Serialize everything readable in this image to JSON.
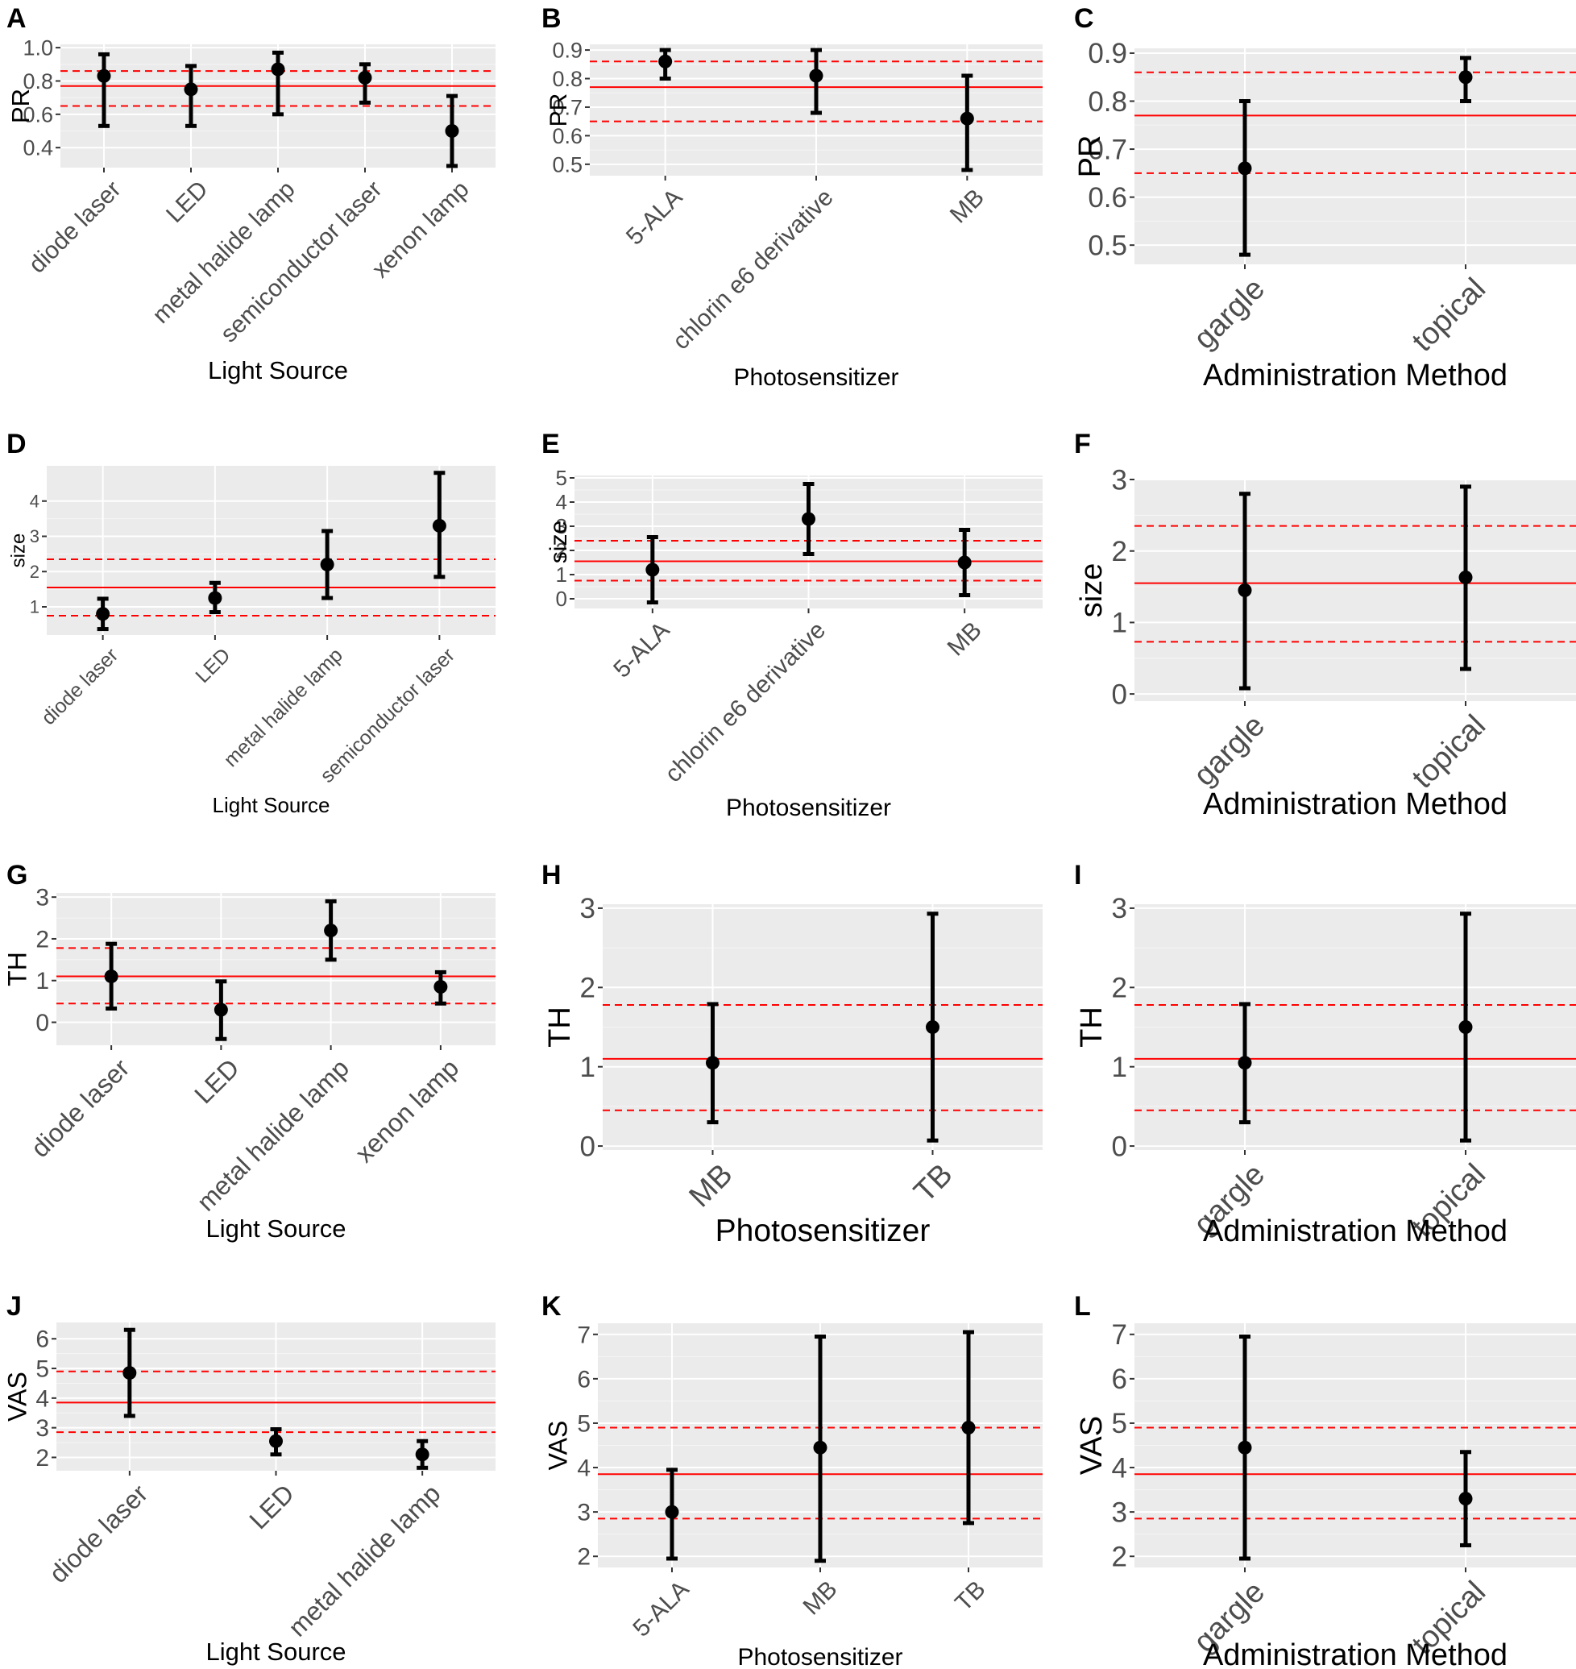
{
  "figure": {
    "title": ""
  },
  "colors": {
    "panel_bg": "#ebebeb",
    "grid_major": "#ffffff",
    "point": "#000000",
    "pooled_line": "#ff0000",
    "ci_line": "#ff0000",
    "tick_text": "#4d4d4d",
    "label_text": "#000000"
  },
  "chart_data": [
    {
      "panel": "A",
      "type": "scatter",
      "xlabel": "Light Source",
      "ylabel": "PR",
      "categories": [
        "diode laser",
        "LED",
        "metal halide lamp",
        "semiconductor laser",
        "xenon lamp"
      ],
      "estimate": [
        0.83,
        0.75,
        0.87,
        0.82,
        0.5
      ],
      "lower": [
        0.53,
        0.53,
        0.6,
        0.67,
        0.29
      ],
      "upper": [
        0.96,
        0.89,
        0.97,
        0.9,
        0.71
      ],
      "pooled": 0.77,
      "pooled_ci": [
        0.65,
        0.86
      ],
      "ylim": [
        0.28,
        1.02
      ],
      "yticks": [
        "0.4",
        "0.6",
        "0.8",
        "1.0"
      ]
    },
    {
      "panel": "B",
      "type": "scatter",
      "xlabel": "Photosensitizer",
      "ylabel": "PR",
      "categories": [
        "5-ALA",
        "chlorin e6 derivative",
        "MB"
      ],
      "estimate": [
        0.86,
        0.81,
        0.66
      ],
      "lower": [
        0.8,
        0.68,
        0.48
      ],
      "upper": [
        0.9,
        0.9,
        0.81
      ],
      "pooled": 0.77,
      "pooled_ci": [
        0.65,
        0.86
      ],
      "ylim": [
        0.46,
        0.92
      ],
      "yticks": [
        "0.5",
        "0.6",
        "0.7",
        "0.8",
        "0.9"
      ]
    },
    {
      "panel": "C",
      "type": "scatter",
      "xlabel": "Administration Method",
      "ylabel": "PR",
      "categories": [
        "gargle",
        "topical"
      ],
      "estimate": [
        0.66,
        0.85
      ],
      "lower": [
        0.48,
        0.8
      ],
      "upper": [
        0.8,
        0.89
      ],
      "pooled": 0.77,
      "pooled_ci": [
        0.65,
        0.86
      ],
      "ylim": [
        0.46,
        0.91
      ],
      "yticks": [
        "0.5",
        "0.6",
        "0.7",
        "0.8",
        "0.9"
      ]
    },
    {
      "panel": "D",
      "type": "scatter",
      "xlabel": "Light Source",
      "ylabel": "size",
      "categories": [
        "diode laser",
        "LED",
        "metal halide lamp",
        "semiconductor laser"
      ],
      "estimate": [
        0.8,
        1.25,
        2.2,
        3.3
      ],
      "lower": [
        0.37,
        0.85,
        1.25,
        1.85
      ],
      "upper": [
        1.23,
        1.68,
        3.15,
        4.8
      ],
      "pooled": 1.55,
      "pooled_ci": [
        0.75,
        2.35
      ],
      "ylim": [
        0.2,
        5.0
      ],
      "yticks": [
        "1",
        "2",
        "3",
        "4"
      ]
    },
    {
      "panel": "E",
      "type": "scatter",
      "xlabel": "Photosensitizer",
      "ylabel": "size",
      "categories": [
        "5-ALA",
        "chlorin e6 derivative",
        "MB"
      ],
      "estimate": [
        1.2,
        3.3,
        1.5
      ],
      "lower": [
        -0.15,
        1.85,
        0.15
      ],
      "upper": [
        2.55,
        4.75,
        2.85
      ],
      "pooled": 1.55,
      "pooled_ci": [
        0.75,
        2.4
      ],
      "ylim": [
        -0.4,
        5.1
      ],
      "yticks": [
        "0",
        "1",
        "2",
        "3",
        "4",
        "5"
      ]
    },
    {
      "panel": "F",
      "type": "scatter",
      "xlabel": "Administration Method",
      "ylabel": "size",
      "categories": [
        "gargle",
        "topical"
      ],
      "estimate": [
        1.45,
        1.63
      ],
      "lower": [
        0.08,
        0.35
      ],
      "upper": [
        2.8,
        2.9
      ],
      "pooled": 1.55,
      "pooled_ci": [
        0.73,
        2.35
      ],
      "ylim": [
        -0.1,
        3.0
      ],
      "yticks": [
        "0",
        "1",
        "2",
        "3"
      ]
    },
    {
      "panel": "G",
      "type": "scatter",
      "xlabel": "Light Source",
      "ylabel": "TH",
      "categories": [
        "diode laser",
        "LED",
        "metal halide lamp",
        "xenon lamp"
      ],
      "estimate": [
        1.1,
        0.3,
        2.2,
        0.85
      ],
      "lower": [
        0.33,
        -0.4,
        1.5,
        0.45
      ],
      "upper": [
        1.88,
        0.98,
        2.9,
        1.2
      ],
      "pooled": 1.1,
      "pooled_ci": [
        0.45,
        1.78
      ],
      "ylim": [
        -0.55,
        3.1
      ],
      "yticks": [
        "0",
        "1",
        "2",
        "3"
      ]
    },
    {
      "panel": "H",
      "type": "scatter",
      "xlabel": "Photosensitizer",
      "ylabel": "TH",
      "categories": [
        "MB",
        "TB"
      ],
      "estimate": [
        1.05,
        1.5
      ],
      "lower": [
        0.3,
        0.07
      ],
      "upper": [
        1.79,
        2.93
      ],
      "pooled": 1.1,
      "pooled_ci": [
        0.45,
        1.78
      ],
      "ylim": [
        -0.05,
        3.05
      ],
      "yticks": [
        "0",
        "1",
        "2",
        "3"
      ]
    },
    {
      "panel": "I",
      "type": "scatter",
      "xlabel": "Administration Method",
      "ylabel": "TH",
      "categories": [
        "gargle",
        "topical"
      ],
      "estimate": [
        1.05,
        1.5
      ],
      "lower": [
        0.3,
        0.07
      ],
      "upper": [
        1.79,
        2.93
      ],
      "pooled": 1.1,
      "pooled_ci": [
        0.45,
        1.78
      ],
      "ylim": [
        -0.05,
        3.05
      ],
      "yticks": [
        "0",
        "1",
        "2",
        "3"
      ]
    },
    {
      "panel": "J",
      "type": "scatter",
      "xlabel": "Light Source",
      "ylabel": "VAS",
      "categories": [
        "diode laser",
        "LED",
        "metal halide lamp"
      ],
      "estimate": [
        4.85,
        2.55,
        2.1
      ],
      "lower": [
        3.4,
        2.1,
        1.65
      ],
      "upper": [
        6.3,
        2.95,
        2.55
      ],
      "pooled": 3.85,
      "pooled_ci": [
        2.85,
        4.9
      ],
      "ylim": [
        1.55,
        6.55
      ],
      "yticks": [
        "2",
        "3",
        "4",
        "5",
        "6"
      ]
    },
    {
      "panel": "K",
      "type": "scatter",
      "xlabel": "Photosensitizer",
      "ylabel": "VAS",
      "categories": [
        "5-ALA",
        "MB",
        "TB"
      ],
      "estimate": [
        3.0,
        4.45,
        4.9
      ],
      "lower": [
        1.95,
        1.9,
        2.75
      ],
      "upper": [
        3.95,
        6.95,
        7.05
      ],
      "pooled": 3.85,
      "pooled_ci": [
        2.85,
        4.9
      ],
      "ylim": [
        1.75,
        7.25
      ],
      "yticks": [
        "2",
        "3",
        "4",
        "5",
        "6",
        "7"
      ]
    },
    {
      "panel": "L",
      "type": "scatter",
      "xlabel": "Administration Method",
      "ylabel": "VAS",
      "categories": [
        "gargle",
        "topical"
      ],
      "estimate": [
        4.45,
        3.3
      ],
      "lower": [
        1.95,
        2.25
      ],
      "upper": [
        6.95,
        4.35
      ],
      "pooled": 3.85,
      "pooled_ci": [
        2.85,
        4.9
      ],
      "ylim": [
        1.75,
        7.25
      ],
      "yticks": [
        "2",
        "3",
        "4",
        "5",
        "6",
        "7"
      ]
    }
  ]
}
